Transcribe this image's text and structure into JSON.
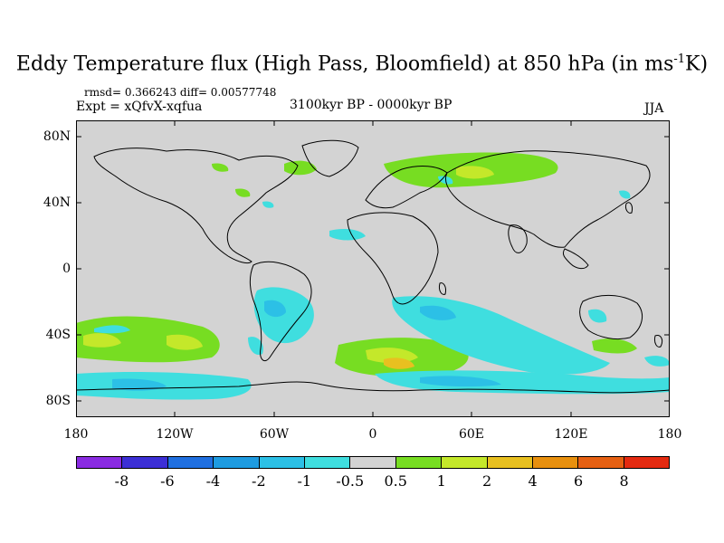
{
  "title_main": "Eddy Temperature flux (High Pass, Bloomfield) at 850 hPa (in ms",
  "title_sup": "-1",
  "title_end": "K)",
  "stats": {
    "rmsd": "rmsd= 0.366243 diff= 0.00577748",
    "expt": "Expt = xQfvX-xqfua",
    "period": "3100kyr BP - 0000kyr BP",
    "season": "JJA"
  },
  "lat_labels": [
    "80N",
    "40N",
    "0",
    "40S",
    "80S"
  ],
  "lon_labels": [
    "180",
    "120W",
    "60W",
    "0",
    "60E",
    "120E",
    "180"
  ],
  "colorbar": {
    "labels": [
      "-8",
      "-6",
      "-4",
      "-2",
      "-1",
      "-0.5",
      "0.5",
      "1",
      "2",
      "4",
      "6",
      "8"
    ],
    "colors": [
      "#8a2be2",
      "#3c2fd6",
      "#1f6fe0",
      "#1e9be0",
      "#2cc0e6",
      "#3fdedf",
      "#d3d3d3",
      "#77dd22",
      "#c4e82a",
      "#e8c020",
      "#e8900e",
      "#e66012",
      "#e42a10"
    ]
  },
  "colors": {
    "background": "#d3d3d3",
    "cyan": "#3fdedf",
    "sky": "#2cc0e6",
    "blue": "#1e9be0",
    "green": "#77dd22",
    "yellow": "#c4e82a",
    "orange": "#e8c020"
  }
}
